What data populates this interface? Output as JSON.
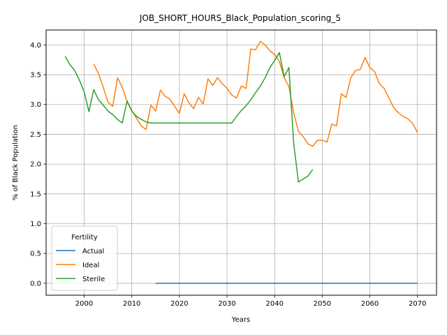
{
  "chart_data": {
    "type": "line",
    "title": "JOB_SHORT_HOURS_Black_Population_scoring_5",
    "xlabel": "Years",
    "ylabel": "% of Black Population",
    "xlim": [
      1992,
      2074
    ],
    "ylim": [
      -0.2,
      4.25
    ],
    "xticks": [
      2000,
      2010,
      2020,
      2030,
      2040,
      2050,
      2060,
      2070
    ],
    "yticks": [
      0.0,
      0.5,
      1.0,
      1.5,
      2.0,
      2.5,
      3.0,
      3.5,
      4.0
    ],
    "ytick_labels": [
      "0.0",
      "0.5",
      "1.0",
      "1.5",
      "2.0",
      "2.5",
      "3.0",
      "3.5",
      "4.0"
    ],
    "grid": true,
    "legend": {
      "title": "Fertility",
      "placement": "lower-left"
    },
    "series": [
      {
        "name": "Actual",
        "color": "#1f77b4",
        "points": [
          [
            2015,
            0.0
          ],
          [
            2070,
            0.0
          ]
        ]
      },
      {
        "name": "Ideal",
        "color": "#ff7f0e",
        "points": [
          [
            2002,
            3.68
          ],
          [
            2003,
            3.52
          ],
          [
            2004,
            3.29
          ],
          [
            2005,
            3.04
          ],
          [
            2006,
            2.97
          ],
          [
            2007,
            3.45
          ],
          [
            2008,
            3.29
          ],
          [
            2009,
            3.05
          ],
          [
            2010,
            2.9
          ],
          [
            2011,
            2.77
          ],
          [
            2012,
            2.64
          ],
          [
            2013,
            2.58
          ],
          [
            2014,
            2.99
          ],
          [
            2015,
            2.89
          ],
          [
            2016,
            3.24
          ],
          [
            2017,
            3.14
          ],
          [
            2018,
            3.09
          ],
          [
            2019,
            2.97
          ],
          [
            2020,
            2.85
          ],
          [
            2021,
            3.18
          ],
          [
            2022,
            3.03
          ],
          [
            2023,
            2.93
          ],
          [
            2024,
            3.12
          ],
          [
            2025,
            3.01
          ],
          [
            2026,
            3.43
          ],
          [
            2027,
            3.32
          ],
          [
            2028,
            3.45
          ],
          [
            2029,
            3.35
          ],
          [
            2030,
            3.27
          ],
          [
            2031,
            3.16
          ],
          [
            2032,
            3.11
          ],
          [
            2033,
            3.31
          ],
          [
            2034,
            3.27
          ],
          [
            2035,
            3.93
          ],
          [
            2036,
            3.92
          ],
          [
            2037,
            4.06
          ],
          [
            2038,
            4.0
          ],
          [
            2039,
            3.9
          ],
          [
            2040,
            3.84
          ],
          [
            2041,
            3.72
          ],
          [
            2042,
            3.45
          ],
          [
            2043,
            3.3
          ],
          [
            2044,
            2.86
          ],
          [
            2045,
            2.55
          ],
          [
            2046,
            2.46
          ],
          [
            2047,
            2.34
          ],
          [
            2048,
            2.3
          ],
          [
            2049,
            2.4
          ],
          [
            2050,
            2.4
          ],
          [
            2051,
            2.37
          ],
          [
            2052,
            2.67
          ],
          [
            2053,
            2.64
          ],
          [
            2054,
            3.18
          ],
          [
            2055,
            3.12
          ],
          [
            2056,
            3.45
          ],
          [
            2057,
            3.57
          ],
          [
            2058,
            3.59
          ],
          [
            2059,
            3.79
          ],
          [
            2060,
            3.62
          ],
          [
            2061,
            3.55
          ],
          [
            2062,
            3.35
          ],
          [
            2063,
            3.27
          ],
          [
            2064,
            3.11
          ],
          [
            2065,
            2.95
          ],
          [
            2066,
            2.86
          ],
          [
            2067,
            2.8
          ],
          [
            2068,
            2.76
          ],
          [
            2069,
            2.68
          ],
          [
            2070,
            2.53
          ]
        ]
      },
      {
        "name": "Sterile",
        "color": "#2ca02c",
        "points": [
          [
            1996,
            3.81
          ],
          [
            1997,
            3.67
          ],
          [
            1998,
            3.57
          ],
          [
            1999,
            3.41
          ],
          [
            2000,
            3.21
          ],
          [
            2001,
            2.88
          ],
          [
            2002,
            3.25
          ],
          [
            2003,
            3.08
          ],
          [
            2004,
            2.99
          ],
          [
            2005,
            2.89
          ],
          [
            2006,
            2.83
          ],
          [
            2007,
            2.75
          ],
          [
            2008,
            2.69
          ],
          [
            2009,
            3.06
          ],
          [
            2010,
            2.89
          ],
          [
            2011,
            2.8
          ],
          [
            2012,
            2.75
          ],
          [
            2013,
            2.71
          ],
          [
            2014,
            2.69
          ],
          [
            2015,
            2.69
          ],
          [
            2020,
            2.69
          ],
          [
            2025,
            2.69
          ],
          [
            2031,
            2.69
          ],
          [
            2032,
            2.8
          ],
          [
            2033,
            2.9
          ],
          [
            2034,
            2.98
          ],
          [
            2035,
            3.08
          ],
          [
            2036,
            3.2
          ],
          [
            2037,
            3.31
          ],
          [
            2038,
            3.45
          ],
          [
            2039,
            3.62
          ],
          [
            2040,
            3.74
          ],
          [
            2041,
            3.87
          ],
          [
            2042,
            3.47
          ],
          [
            2043,
            3.62
          ],
          [
            2044,
            2.35
          ],
          [
            2045,
            1.7
          ],
          [
            2046,
            1.75
          ],
          [
            2047,
            1.8
          ],
          [
            2048,
            1.91
          ]
        ]
      }
    ]
  }
}
